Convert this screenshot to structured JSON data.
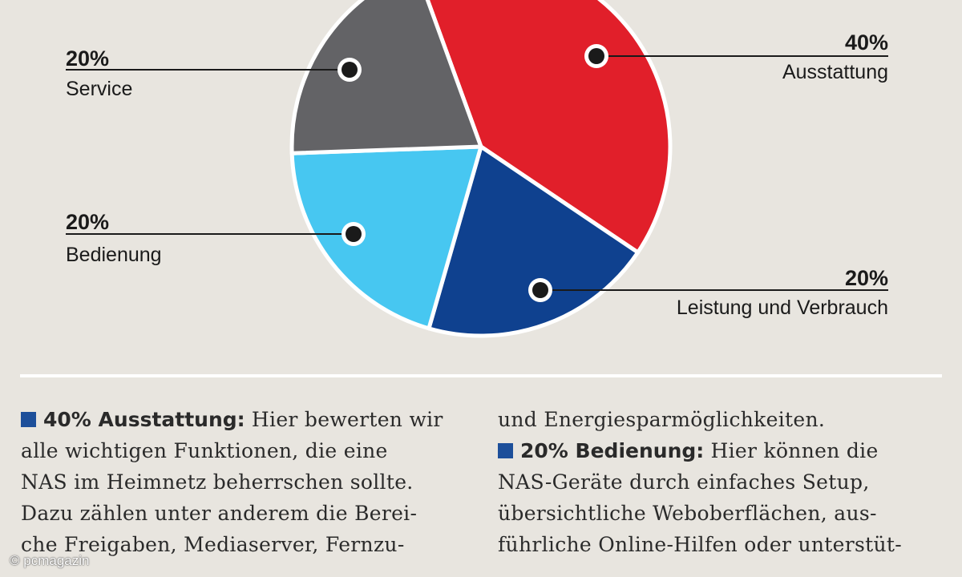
{
  "chart_data": {
    "type": "pie",
    "slices": [
      {
        "pct_label": "40%",
        "name": "Ausstattung",
        "value": 40,
        "color": "#e11f2a"
      },
      {
        "pct_label": "20%",
        "name": "Leistung und Verbrauch",
        "value": 20,
        "color": "#0f418f"
      },
      {
        "pct_label": "20%",
        "name": "Bedienung",
        "value": 20,
        "color": "#47c7f1"
      },
      {
        "pct_label": "20%",
        "name": "Service",
        "value": 20,
        "color": "#636366"
      }
    ]
  },
  "text": {
    "left_lines": [
      {
        "head": "40% Ausstattung:",
        "rest": " Hier bewerten wir"
      },
      {
        "rest": "alle wichtigen Funktionen, die eine"
      },
      {
        "rest": "NAS im Heimnetz beherrschen sollte."
      },
      {
        "rest": "Dazu zählen unter anderem die Berei-"
      },
      {
        "rest": "che Freigaben, Mediaserver, Fernzu-"
      }
    ],
    "right_lines": [
      {
        "rest": "und Energiesparmöglichkeiten."
      },
      {
        "head": "20% Bedienung:",
        "rest": " Hier können die"
      },
      {
        "rest": "NAS-Geräte durch einfaches Setup,"
      },
      {
        "rest": "übersichtliche Weboberflächen, aus-"
      },
      {
        "rest": "führliche Online-Hilfen oder unterstüt-"
      }
    ]
  },
  "watermark": "© pcmagazin"
}
